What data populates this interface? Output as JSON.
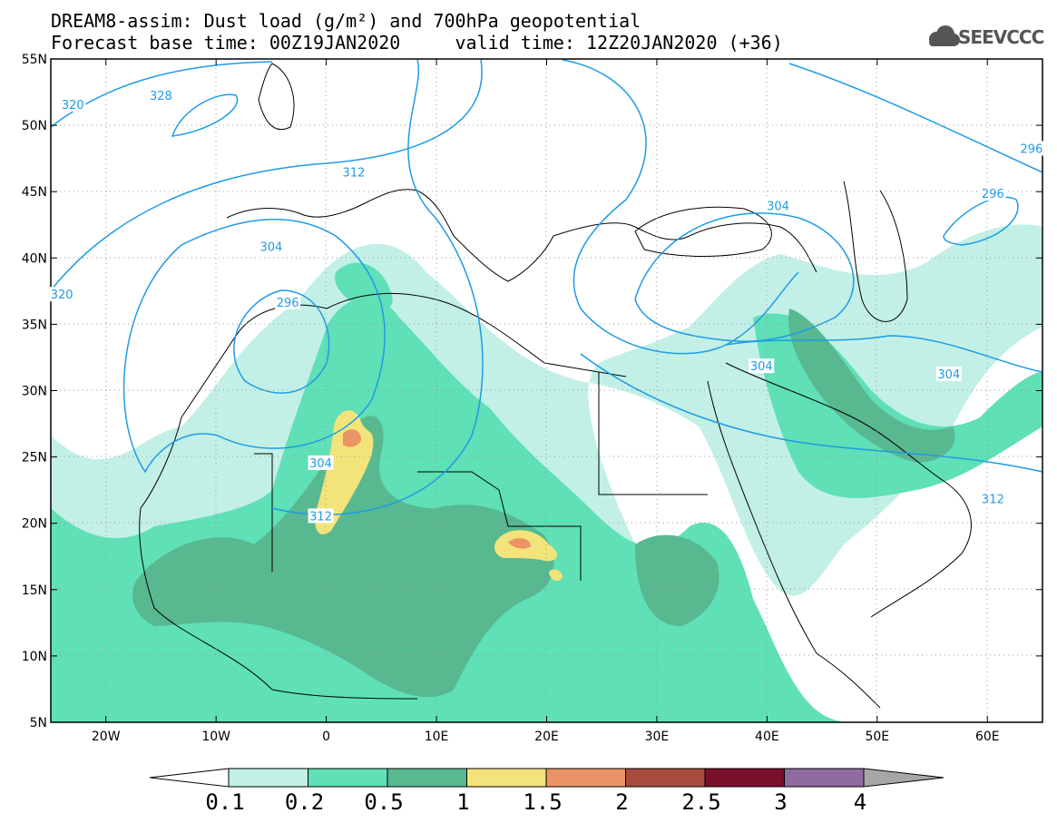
{
  "header": {
    "title_line1": "DREAM8-assim: Dust load (g/m²) and 700hPa geopotential",
    "title_line2": "Forecast base time: 00Z19JAN2020     valid time: 12Z20JAN2020 (+36)",
    "logo_text": "SEEVCCC"
  },
  "map": {
    "lon_range": [
      -25,
      65
    ],
    "lat_range": [
      5,
      55
    ],
    "lat_ticks": [
      {
        "lat": 55,
        "label": "55N"
      },
      {
        "lat": 50,
        "label": "50N"
      },
      {
        "lat": 45,
        "label": "45N"
      },
      {
        "lat": 40,
        "label": "40N"
      },
      {
        "lat": 35,
        "label": "35N"
      },
      {
        "lat": 30,
        "label": "30N"
      },
      {
        "lat": 25,
        "label": "25N"
      },
      {
        "lat": 20,
        "label": "20N"
      },
      {
        "lat": 15,
        "label": "15N"
      },
      {
        "lat": 10,
        "label": "10N"
      },
      {
        "lat": 5,
        "label": "5N"
      }
    ],
    "lon_ticks": [
      {
        "lon": -20,
        "label": "20W"
      },
      {
        "lon": -10,
        "label": "10W"
      },
      {
        "lon": 0,
        "label": "0"
      },
      {
        "lon": 10,
        "label": "10E"
      },
      {
        "lon": 20,
        "label": "20E"
      },
      {
        "lon": 30,
        "label": "30E"
      },
      {
        "lon": 40,
        "label": "40E"
      },
      {
        "lon": 50,
        "label": "50E"
      },
      {
        "lon": 60,
        "label": "60E"
      }
    ],
    "contour_labels": [
      {
        "text": "320",
        "lon": -23,
        "lat": 51.5
      },
      {
        "text": "328",
        "lon": -15,
        "lat": 52.2
      },
      {
        "text": "312",
        "lon": 2.5,
        "lat": 46.4
      },
      {
        "text": "304",
        "lon": -5,
        "lat": 40.8
      },
      {
        "text": "296",
        "lon": -3.5,
        "lat": 36.6
      },
      {
        "text": "320",
        "lon": -24,
        "lat": 37.2
      },
      {
        "text": "304",
        "lon": -0.5,
        "lat": 24.5
      },
      {
        "text": "312",
        "lon": -0.5,
        "lat": 20.5
      },
      {
        "text": "304",
        "lon": 41,
        "lat": 43.9
      },
      {
        "text": "304",
        "lon": 39.5,
        "lat": 31.8
      },
      {
        "text": "304",
        "lon": 56.5,
        "lat": 31.2
      },
      {
        "text": "296",
        "lon": 64,
        "lat": 48.2
      },
      {
        "text": "296",
        "lon": 60.5,
        "lat": 44.8
      },
      {
        "text": "312",
        "lon": 60.5,
        "lat": 21.8
      }
    ],
    "colors": {
      "contour": "#1e9be6",
      "coast": "#000000"
    }
  },
  "colorbar": {
    "labels": [
      "0.1",
      "0.2",
      "0.5",
      "1",
      "1.5",
      "2",
      "2.5",
      "3",
      "4"
    ],
    "colors": [
      "#c2f0e6",
      "#5fe0b6",
      "#58b890",
      "#f2e47a",
      "#ec9365",
      "#a84a3e",
      "#7a0f2c",
      "#8f6ca0"
    ],
    "under_color": "#ffffff",
    "over_color": "#a7a7a7"
  }
}
